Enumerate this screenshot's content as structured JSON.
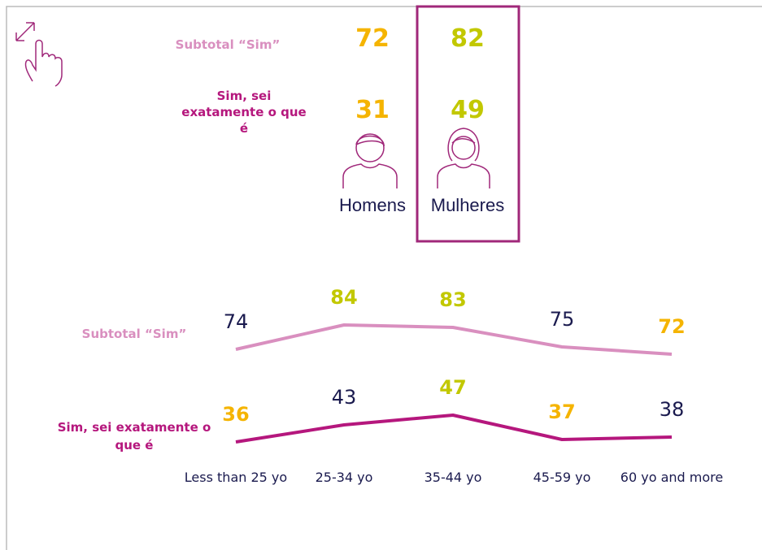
{
  "gender": {
    "row_labels": [
      "Subtotal “Sim”",
      "Sim, sei exatamente o que é"
    ],
    "row_colors": [
      "#d98fbf",
      "#b5177d"
    ],
    "groups": [
      {
        "name": "Homens",
        "values": [
          72,
          31
        ],
        "color": "#f5b400"
      },
      {
        "name": "Mulheres",
        "values": [
          82,
          49
        ],
        "color": "#c2c800"
      }
    ]
  },
  "chart_data": {
    "type": "line",
    "categories": [
      "Less than 25 yo",
      "25-34 yo",
      "35-44 yo",
      "45-59 yo",
      "60 yo and more"
    ],
    "label_color": "#1a1a4e",
    "series": [
      {
        "name": "Subtotal “Sim”",
        "color": "#d98fbf",
        "values": [
          74,
          84,
          83,
          75,
          72
        ],
        "label_colors": [
          null,
          "#c2c800",
          "#c2c800",
          null,
          "#f5b400"
        ]
      },
      {
        "name": "Sim, sei exatamente o que é",
        "color": "#b5177d",
        "values": [
          36,
          43,
          47,
          37,
          38
        ],
        "label_colors": [
          "#f5b400",
          null,
          "#c2c800",
          "#f5b400",
          null
        ]
      }
    ]
  }
}
